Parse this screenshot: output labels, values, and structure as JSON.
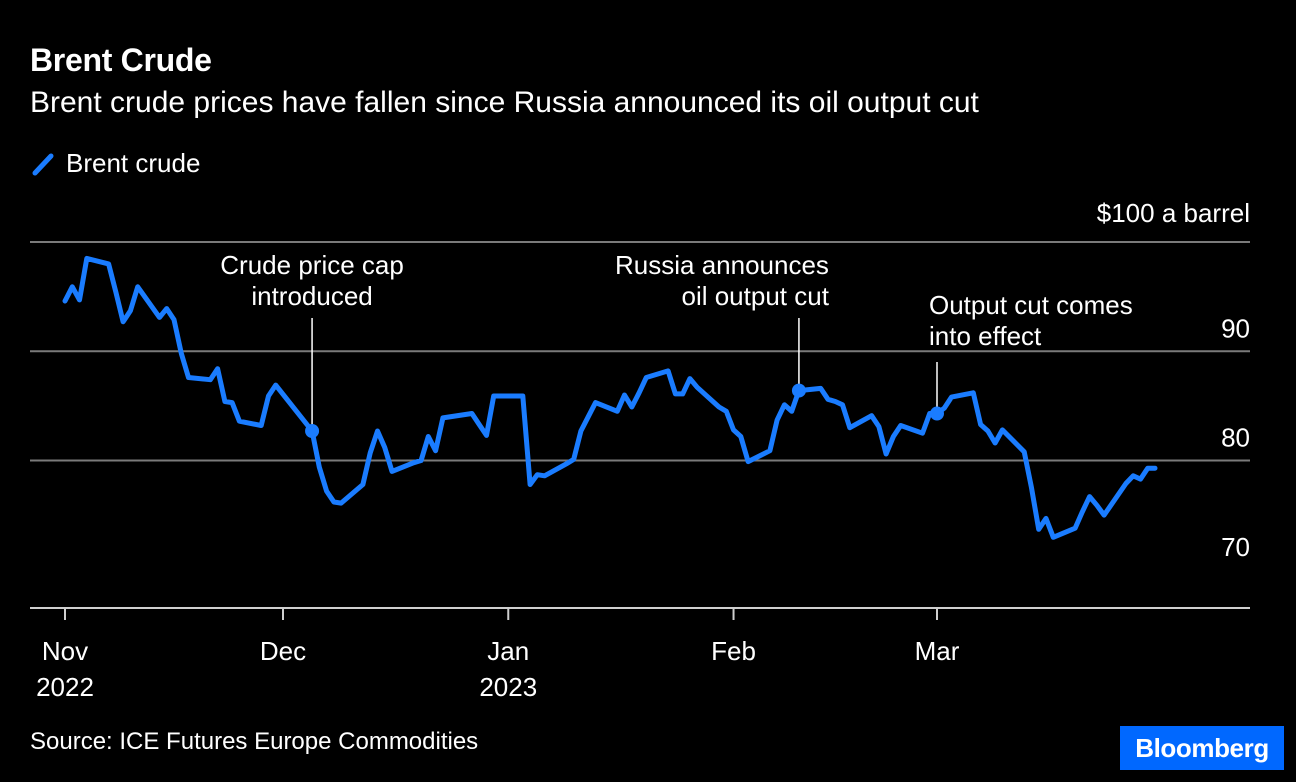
{
  "chart_data": {
    "type": "line",
    "title": "Brent Crude",
    "subtitle": "Brent crude prices have fallen since Russia announced its oil output cut",
    "series": [
      {
        "name": "Brent crude",
        "color": "#1a7cff",
        "points": [
          [
            "2022-11-01",
            94.6
          ],
          [
            "2022-11-02",
            95.9
          ],
          [
            "2022-11-03",
            94.7
          ],
          [
            "2022-11-04",
            98.5
          ],
          [
            "2022-11-07",
            98.0
          ],
          [
            "2022-11-08",
            95.4
          ],
          [
            "2022-11-09",
            92.7
          ],
          [
            "2022-11-10",
            93.7
          ],
          [
            "2022-11-11",
            95.9
          ],
          [
            "2022-11-14",
            93.1
          ],
          [
            "2022-11-15",
            93.9
          ],
          [
            "2022-11-16",
            92.9
          ],
          [
            "2022-11-17",
            89.8
          ],
          [
            "2022-11-18",
            87.6
          ],
          [
            "2022-11-21",
            87.4
          ],
          [
            "2022-11-22",
            88.4
          ],
          [
            "2022-11-23",
            85.4
          ],
          [
            "2022-11-24",
            85.3
          ],
          [
            "2022-11-25",
            83.6
          ],
          [
            "2022-11-28",
            83.2
          ],
          [
            "2022-11-29",
            85.9
          ],
          [
            "2022-11-30",
            86.9
          ],
          [
            "2022-12-05",
            82.7
          ],
          [
            "2022-12-06",
            79.4
          ],
          [
            "2022-12-07",
            77.2
          ],
          [
            "2022-12-08",
            76.2
          ],
          [
            "2022-12-09",
            76.1
          ],
          [
            "2022-12-12",
            77.8
          ],
          [
            "2022-12-13",
            80.7
          ],
          [
            "2022-12-14",
            82.7
          ],
          [
            "2022-12-15",
            81.2
          ],
          [
            "2022-12-16",
            79.0
          ],
          [
            "2022-12-19",
            79.8
          ],
          [
            "2022-12-20",
            80.0
          ],
          [
            "2022-12-21",
            82.2
          ],
          [
            "2022-12-22",
            80.9
          ],
          [
            "2022-12-23",
            83.9
          ],
          [
            "2022-12-27",
            84.3
          ],
          [
            "2022-12-28",
            83.3
          ],
          [
            "2022-12-29",
            82.3
          ],
          [
            "2022-12-30",
            85.9
          ],
          [
            "2023-01-03",
            85.9
          ],
          [
            "2023-01-04",
            77.8
          ],
          [
            "2023-01-05",
            78.7
          ],
          [
            "2023-01-06",
            78.6
          ],
          [
            "2023-01-09",
            79.7
          ],
          [
            "2023-01-10",
            80.1
          ],
          [
            "2023-01-11",
            82.7
          ],
          [
            "2023-01-12",
            84.0
          ],
          [
            "2023-01-13",
            85.3
          ],
          [
            "2023-01-16",
            84.5
          ],
          [
            "2023-01-17",
            86.0
          ],
          [
            "2023-01-18",
            84.9
          ],
          [
            "2023-01-19",
            86.2
          ],
          [
            "2023-01-20",
            87.6
          ],
          [
            "2023-01-23",
            88.2
          ],
          [
            "2023-01-24",
            86.1
          ],
          [
            "2023-01-25",
            86.1
          ],
          [
            "2023-01-26",
            87.5
          ],
          [
            "2023-01-27",
            86.7
          ],
          [
            "2023-01-30",
            84.9
          ],
          [
            "2023-01-31",
            84.5
          ],
          [
            "2023-02-01",
            82.8
          ],
          [
            "2023-02-02",
            82.2
          ],
          [
            "2023-02-03",
            79.9
          ],
          [
            "2023-02-06",
            80.9
          ],
          [
            "2023-02-07",
            83.7
          ],
          [
            "2023-02-08",
            85.1
          ],
          [
            "2023-02-09",
            84.5
          ],
          [
            "2023-02-10",
            86.4
          ],
          [
            "2023-02-13",
            86.6
          ],
          [
            "2023-02-14",
            85.6
          ],
          [
            "2023-02-15",
            85.4
          ],
          [
            "2023-02-16",
            85.1
          ],
          [
            "2023-02-17",
            83.0
          ],
          [
            "2023-02-20",
            84.1
          ],
          [
            "2023-02-21",
            83.1
          ],
          [
            "2023-02-22",
            80.6
          ],
          [
            "2023-02-23",
            82.2
          ],
          [
            "2023-02-24",
            83.2
          ],
          [
            "2023-02-27",
            82.5
          ],
          [
            "2023-02-28",
            84.3
          ],
          [
            "2023-03-01",
            84.3
          ],
          [
            "2023-03-02",
            84.8
          ],
          [
            "2023-03-03",
            85.8
          ],
          [
            "2023-03-06",
            86.2
          ],
          [
            "2023-03-07",
            83.3
          ],
          [
            "2023-03-08",
            82.7
          ],
          [
            "2023-03-09",
            81.6
          ],
          [
            "2023-03-10",
            82.8
          ],
          [
            "2023-03-13",
            80.8
          ],
          [
            "2023-03-14",
            77.5
          ],
          [
            "2023-03-15",
            73.7
          ],
          [
            "2023-03-16",
            74.7
          ],
          [
            "2023-03-17",
            72.97
          ],
          [
            "2023-03-20",
            73.8
          ],
          [
            "2023-03-21",
            75.3
          ],
          [
            "2023-03-22",
            76.7
          ],
          [
            "2023-03-23",
            75.9
          ],
          [
            "2023-03-24",
            75.0
          ],
          [
            "2023-03-27",
            77.9
          ],
          [
            "2023-03-28",
            78.6
          ],
          [
            "2023-03-29",
            78.3
          ],
          [
            "2023-03-30",
            79.3
          ],
          [
            "2023-03-31",
            79.3
          ]
        ]
      }
    ],
    "y_axis": {
      "unit_label": "$100 a barrel",
      "ticks": [
        70,
        80,
        90,
        100
      ],
      "tick_labels": [
        "70",
        "80",
        "90",
        ""
      ],
      "ylim": [
        66.5,
        100
      ],
      "gridlines": [
        80,
        90,
        100
      ],
      "side": "right"
    },
    "x_axis": {
      "xlim": [
        "2022-10-30",
        "2023-04-10"
      ],
      "ticks": [
        {
          "date": "2022-11-01",
          "label": "Nov",
          "sublabel": "2022"
        },
        {
          "date": "2022-12-01",
          "label": "Dec",
          "sublabel": ""
        },
        {
          "date": "2023-01-01",
          "label": "Jan",
          "sublabel": "2023"
        },
        {
          "date": "2023-02-01",
          "label": "Feb",
          "sublabel": ""
        },
        {
          "date": "2023-03-01",
          "label": "Mar",
          "sublabel": ""
        }
      ]
    },
    "annotations": [
      {
        "date": "2022-12-05",
        "value": 82.7,
        "lines": [
          "Crude price cap",
          "introduced"
        ],
        "align": "middle"
      },
      {
        "date": "2023-02-10",
        "value": 86.4,
        "lines": [
          "Russia announces",
          "oil output cut"
        ],
        "align": "end"
      },
      {
        "date": "2023-03-01",
        "value": 84.3,
        "lines": [
          "Output cut comes",
          "into effect"
        ],
        "align": "start"
      }
    ],
    "legend": "top-left"
  },
  "source": "Source: ICE Futures Europe Commodities",
  "brand": "Bloomberg"
}
